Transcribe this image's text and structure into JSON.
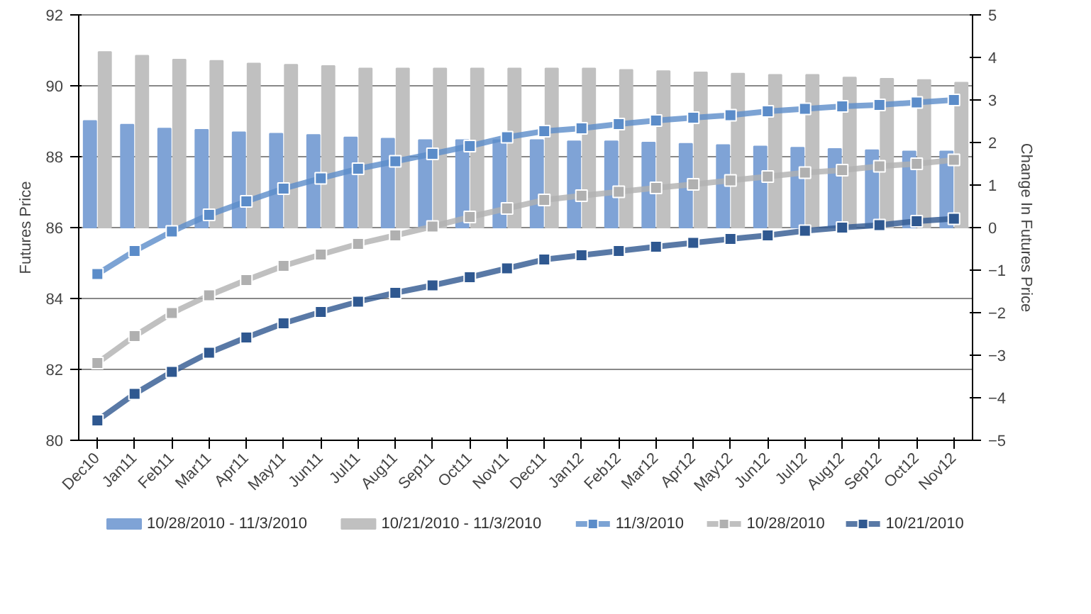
{
  "chart_data": {
    "type": "bar",
    "categories": [
      "Dec10",
      "Jan11",
      "Feb11",
      "Mar11",
      "Apr11",
      "May11",
      "Jun11",
      "Jul11",
      "Aug11",
      "Sep11",
      "Oct11",
      "Nov11",
      "Dec11",
      "Jan12",
      "Feb12",
      "Mar12",
      "Apr12",
      "May12",
      "Jun12",
      "Jul12",
      "Aug12",
      "Sep12",
      "Oct12",
      "Nov12"
    ],
    "ylabel": "Futures Price",
    "y2label": "Change In Futures Price",
    "ylim": [
      80,
      92
    ],
    "yticks": [
      80,
      82,
      84,
      86,
      88,
      90,
      92
    ],
    "y2lim": [
      -5,
      5
    ],
    "y2ticks": [
      -5,
      -4,
      -3,
      -2,
      -1,
      0,
      1,
      2,
      3,
      4,
      5
    ],
    "grid": "y",
    "legend": "bottom",
    "marker": "square",
    "series": [
      {
        "name": "10/28/2010 - 11/3/2010",
        "axis": "y2",
        "color": "#7fa3d6",
        "values": [
          2.51,
          2.42,
          2.33,
          2.3,
          2.24,
          2.21,
          2.18,
          2.12,
          2.09,
          2.06,
          2.06,
          2.06,
          2.06,
          2.03,
          2.03,
          2.0,
          1.97,
          1.94,
          1.91,
          1.88,
          1.85,
          1.82,
          1.79,
          1.79
        ]
      },
      {
        "name": "10/21/2010 - 11/3/2010",
        "axis": "y2",
        "color": "#c0c0c0",
        "values": [
          4.13,
          4.04,
          3.95,
          3.92,
          3.86,
          3.83,
          3.8,
          3.74,
          3.74,
          3.74,
          3.74,
          3.74,
          3.74,
          3.74,
          3.71,
          3.68,
          3.65,
          3.62,
          3.59,
          3.59,
          3.53,
          3.5,
          3.47,
          3.41
        ]
      },
      {
        "name": "11/3/2010",
        "type": "line",
        "color": "#5b8cc9",
        "values": [
          84.69,
          85.34,
          85.89,
          86.36,
          86.74,
          87.1,
          87.39,
          87.66,
          87.87,
          88.08,
          88.3,
          88.55,
          88.72,
          88.8,
          88.92,
          89.02,
          89.1,
          89.17,
          89.28,
          89.35,
          89.42,
          89.46,
          89.53,
          89.6
        ]
      },
      {
        "name": "10/28/2010",
        "type": "line",
        "color": "#b0b0b0",
        "values": [
          82.18,
          82.94,
          83.59,
          84.09,
          84.52,
          84.92,
          85.24,
          85.54,
          85.78,
          86.03,
          86.3,
          86.54,
          86.78,
          86.9,
          87.01,
          87.12,
          87.22,
          87.33,
          87.44,
          87.55,
          87.62,
          87.73,
          87.8,
          87.91
        ]
      },
      {
        "name": "10/21/2010",
        "type": "line",
        "color": "#2f5890",
        "values": [
          80.56,
          81.31,
          81.93,
          82.47,
          82.9,
          83.3,
          83.62,
          83.91,
          84.16,
          84.37,
          84.6,
          84.85,
          85.1,
          85.22,
          85.34,
          85.46,
          85.57,
          85.68,
          85.78,
          85.91,
          86.0,
          86.07,
          86.18,
          86.25
        ]
      }
    ]
  }
}
